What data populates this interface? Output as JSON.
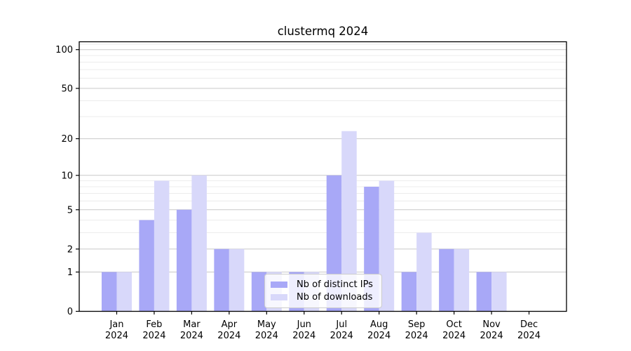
{
  "chart_data": {
    "type": "bar",
    "title": "clustermq 2024",
    "year_label": "2024",
    "categories": [
      "Jan",
      "Feb",
      "Mar",
      "Apr",
      "May",
      "Jun",
      "Jul",
      "Aug",
      "Sep",
      "Oct",
      "Nov",
      "Dec"
    ],
    "series": [
      {
        "name": "Nb of distinct IPs",
        "color": "#a8a8f7",
        "values": [
          1,
          4,
          5,
          2,
          1,
          1,
          10,
          8,
          1,
          2,
          1,
          0
        ]
      },
      {
        "name": "Nb of downloads",
        "color": "#d8d8fa",
        "values": [
          1,
          9,
          10,
          2,
          1,
          1,
          23,
          9,
          3,
          2,
          1,
          0
        ]
      }
    ],
    "yscale": "log1p",
    "ylim": [
      0,
      115
    ],
    "yticks": [
      0,
      1,
      2,
      5,
      10,
      20,
      50,
      100
    ],
    "yticks_minor": [
      3,
      4,
      6,
      7,
      8,
      9,
      30,
      40,
      60,
      70,
      80,
      90,
      110
    ],
    "grid": true,
    "legend_position": "lower center",
    "colors": {
      "major_grid": "#c9c9c9",
      "minor_grid": "#ececec",
      "spine": "#000000",
      "background": "#ffffff"
    }
  }
}
